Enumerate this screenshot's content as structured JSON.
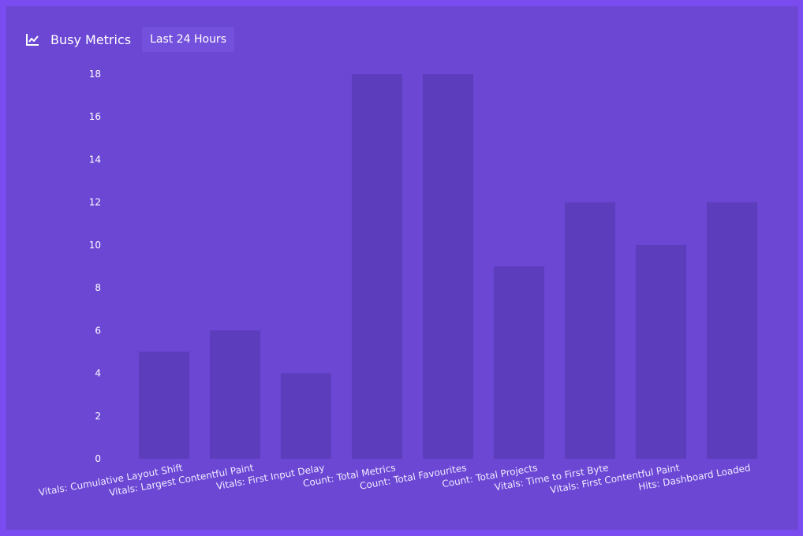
{
  "header": {
    "title": "Busy Metrics",
    "range_label": "Last 24 Hours",
    "icon": "line-chart-icon"
  },
  "colors": {
    "page_border": "#7a4cf0",
    "panel": "#6b47d4",
    "bar": "#5c3dbb",
    "button": "#7451dc",
    "text": "#ffffff"
  },
  "chart_data": {
    "type": "bar",
    "categories": [
      "Vitals: Cumulative Layout Shift",
      "Vitals: Largest Contentful Paint",
      "Vitals: First Input Delay",
      "Count: Total Metrics",
      "Count: Total Favourites",
      "Count: Total Projects",
      "Vitals: Time to First Byte",
      "Vitals: First Contentful Paint",
      "Hits: Dashboard Loaded"
    ],
    "values": [
      5,
      6,
      4,
      18,
      18,
      9,
      12,
      10,
      12
    ],
    "ylim": [
      0,
      18
    ],
    "yticks": [
      0,
      2,
      4,
      6,
      8,
      10,
      12,
      14,
      16,
      18
    ],
    "grid": false,
    "legend": "none"
  }
}
